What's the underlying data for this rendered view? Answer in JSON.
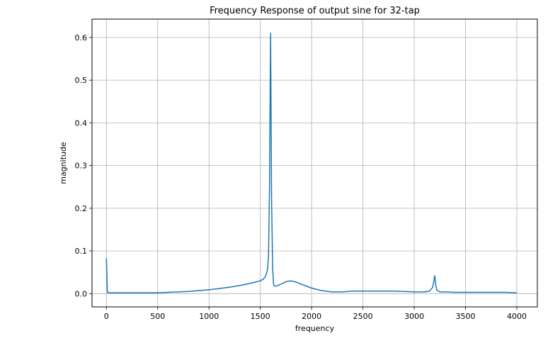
{
  "chart_data": {
    "type": "line",
    "title": "Frequency Response of output sine for 32-tap",
    "xlabel": "frequency",
    "ylabel": "magnitude",
    "xlim": [
      -140,
      4200
    ],
    "ylim": [
      -0.031,
      0.643
    ],
    "xticks": [
      "0",
      "500",
      "1000",
      "1500",
      "2000",
      "2500",
      "3000",
      "3500",
      "4000"
    ],
    "xtick_values": [
      0,
      500,
      1000,
      1500,
      2000,
      2500,
      3000,
      3500,
      4000
    ],
    "yticks": [
      "0.0",
      "0.1",
      "0.2",
      "0.3",
      "0.4",
      "0.5",
      "0.6"
    ],
    "ytick_values": [
      0,
      0.1,
      0.2,
      0.3,
      0.4,
      0.5,
      0.6
    ],
    "grid": true,
    "line_color": "#1f77b4",
    "series": [
      {
        "name": "",
        "x": [
          0,
          10,
          20,
          100,
          200,
          300,
          400,
          500,
          600,
          700,
          800,
          900,
          1000,
          1100,
          1200,
          1300,
          1400,
          1450,
          1500,
          1530,
          1550,
          1570,
          1580,
          1590,
          1595,
          1600,
          1605,
          1610,
          1620,
          1630,
          1650,
          1700,
          1750,
          1800,
          1850,
          1900,
          2000,
          2100,
          2200,
          2300,
          2400,
          2500,
          2600,
          2700,
          2800,
          2900,
          3000,
          3100,
          3150,
          3180,
          3190,
          3200,
          3210,
          3220,
          3250,
          3300,
          3400,
          3500,
          3600,
          3700,
          3800,
          3900,
          4000
        ],
        "y": [
          0.083,
          0.003,
          0.002,
          0.002,
          0.002,
          0.002,
          0.002,
          0.002,
          0.003,
          0.004,
          0.005,
          0.007,
          0.009,
          0.012,
          0.015,
          0.019,
          0.024,
          0.027,
          0.03,
          0.034,
          0.04,
          0.055,
          0.09,
          0.25,
          0.45,
          0.61,
          0.42,
          0.22,
          0.06,
          0.02,
          0.017,
          0.022,
          0.028,
          0.03,
          0.027,
          0.022,
          0.013,
          0.007,
          0.004,
          0.004,
          0.006,
          0.006,
          0.006,
          0.006,
          0.006,
          0.005,
          0.004,
          0.004,
          0.006,
          0.015,
          0.028,
          0.042,
          0.02,
          0.008,
          0.004,
          0.004,
          0.003,
          0.003,
          0.003,
          0.003,
          0.003,
          0.003,
          0.002
        ]
      }
    ]
  }
}
